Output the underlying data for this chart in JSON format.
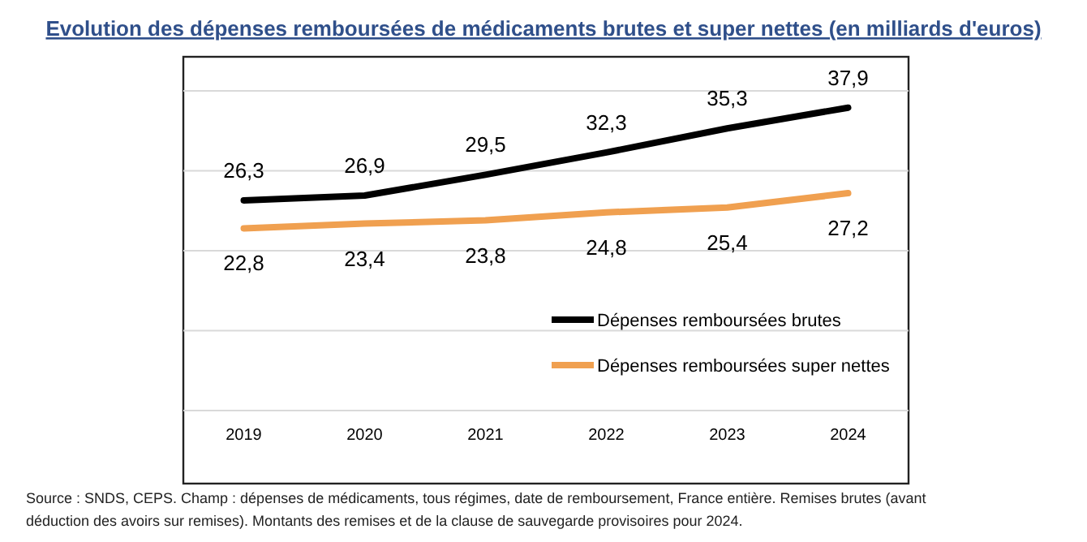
{
  "chart_data": {
    "type": "line",
    "title": "Evolution des dépenses remboursées de médicaments brutes et super nettes (en milliards d'euros)",
    "categories": [
      "2019",
      "2020",
      "2021",
      "2022",
      "2023",
      "2024"
    ],
    "series": [
      {
        "name": "Dépenses remboursées brutes",
        "color": "#000000",
        "values": [
          26.3,
          26.9,
          29.5,
          32.3,
          35.3,
          37.9
        ],
        "value_labels": [
          "26,3",
          "26,9",
          "29,5",
          "32,3",
          "35,3",
          "37,9"
        ]
      },
      {
        "name": "Dépenses remboursées super nettes",
        "color": "#f0a050",
        "values": [
          22.8,
          23.4,
          23.8,
          24.8,
          25.4,
          27.2
        ],
        "value_labels": [
          "22,8",
          "23,4",
          "23,8",
          "24,8",
          "25,4",
          "27,2"
        ]
      }
    ],
    "ylim": [
      0,
      40
    ],
    "yticks": [
      {
        "value": 0,
        "label": null
      },
      {
        "value": 10,
        "label": null
      },
      {
        "value": 20,
        "label": null
      },
      {
        "value": 30,
        "label": null
      },
      {
        "value": 40,
        "label": null
      }
    ],
    "tick_labels": "x",
    "grid": "y",
    "legend": "bottom right",
    "marker": "none",
    "line_style": "solid",
    "annotations": [
      "Source : SNDS, CEPS. Champ : dépenses de médicaments, tous régimes, date de remboursement, France entière. Remises brutes (avant déduction des avoirs sur remises). Montants des remises et de la clause de sauvegarde provisoires pour 2024."
    ]
  }
}
